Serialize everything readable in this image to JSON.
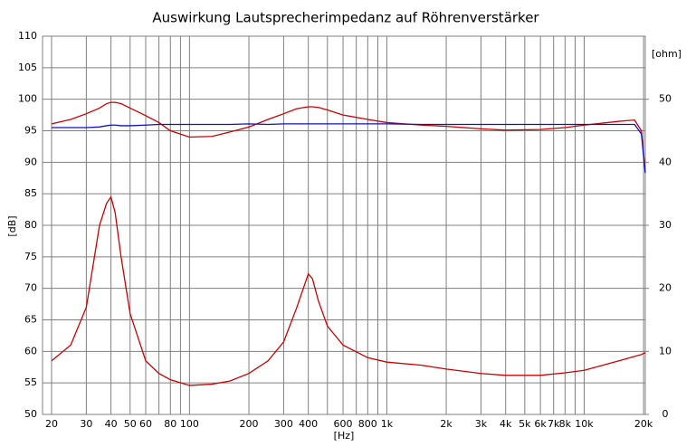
{
  "chart_data": {
    "type": "line",
    "title": "Auswirkung Lautsprecherimpedanz auf Röhrenverstärker",
    "x_label": "[Hz]",
    "y_label": "[dB]",
    "y2_label": "[ohm]",
    "log_x": true,
    "grid": true,
    "xlim": [
      18,
      20400
    ],
    "xticks": [
      20,
      30,
      40,
      50,
      60,
      80,
      100,
      200,
      300,
      400,
      600,
      800,
      {
        "value": 1000,
        "label": "1k"
      },
      {
        "value": 2000,
        "label": "2k"
      },
      {
        "value": 3000,
        "label": "3k"
      },
      {
        "value": 4000,
        "label": "4k"
      },
      {
        "value": 5000,
        "label": "5k"
      },
      {
        "value": 6000,
        "label": "6k"
      },
      {
        "value": 7000,
        "label": "7k"
      },
      {
        "value": 8000,
        "label": "8k"
      },
      {
        "value": 10000,
        "label": "10k"
      },
      {
        "value": 20000,
        "label": "20k"
      }
    ],
    "x_minor_grid": [
      70,
      90,
      500,
      700,
      900,
      9000
    ],
    "ylim": [
      50,
      110
    ],
    "yticks": [
      50,
      55,
      60,
      65,
      70,
      75,
      80,
      85,
      90,
      95,
      100,
      105,
      110
    ],
    "y2lim": [
      0,
      60
    ],
    "y2ticks": [
      0,
      10,
      20,
      30,
      40,
      50
    ],
    "x": [
      20,
      25,
      30,
      35,
      38,
      40,
      42,
      45,
      50,
      60,
      70,
      80,
      100,
      130,
      160,
      200,
      250,
      300,
      350,
      400,
      420,
      450,
      500,
      600,
      800,
      1000,
      1500,
      2000,
      3000,
      4000,
      6000,
      8000,
      10000,
      15000,
      18000,
      19500,
      20400
    ],
    "series": [
      {
        "color": "#cc0000",
        "values": [
          96.1,
          96.8,
          97.7,
          98.6,
          99.3,
          99.5,
          99.5,
          99.3,
          98.6,
          97.4,
          96.3,
          95,
          94,
          94.1,
          94.8,
          95.6,
          96.8,
          97.7,
          98.5,
          98.8,
          98.8,
          98.7,
          98.3,
          97.5,
          96.8,
          96.3,
          95.9,
          95.7,
          95.3,
          95.1,
          95.2,
          95.5,
          95.9,
          96.5,
          96.7,
          95,
          88.5
        ]
      },
      {
        "color": "#1010c0",
        "values": [
          95.5,
          95.5,
          95.5,
          95.6,
          95.8,
          95.9,
          95.9,
          95.8,
          95.8,
          95.9,
          96,
          96,
          96,
          96,
          96,
          96.1,
          96,
          96.1,
          96.1,
          96.1,
          96.1,
          96.1,
          96.1,
          96.1,
          96.1,
          96.1,
          96,
          96,
          96,
          96,
          96,
          96,
          96,
          96,
          96,
          94.5,
          88.3
        ]
      },
      {
        "color": "#cc0000",
        "axis": "y2",
        "values": [
          8.5,
          11,
          17,
          30,
          33.5,
          34.5,
          32,
          25,
          16,
          8.5,
          6.5,
          5.5,
          4.6,
          4.8,
          5.3,
          6.5,
          8.5,
          11.5,
          17,
          22.3,
          21.5,
          18,
          14,
          11,
          9,
          8.3,
          7.8,
          7.2,
          6.5,
          6.2,
          6.2,
          6.6,
          7,
          8.5,
          9.2,
          9.5,
          9.8
        ]
      }
    ]
  }
}
